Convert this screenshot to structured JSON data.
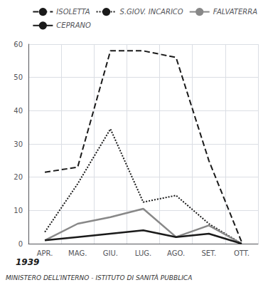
{
  "chart_data": {
    "type": "line",
    "categories": [
      "APR.",
      "MAG.",
      "GIU.",
      "LUG.",
      "AGO.",
      "SET.",
      "OTT."
    ],
    "series": [
      {
        "name": "ISOLETTA",
        "color": "#1a1a1a",
        "line_style": "dashed",
        "values": [
          21.5,
          23,
          58,
          58,
          56,
          25,
          0.5
        ]
      },
      {
        "name": "S.GIOV. INCARICO",
        "color": "#1a1a1a",
        "line_style": "dotted",
        "values": [
          3.5,
          18,
          34.5,
          12.5,
          14.5,
          6,
          0
        ]
      },
      {
        "name": "FALVATERRA",
        "color": "#888888",
        "line_style": "solid",
        "values": [
          1,
          6,
          8,
          10.5,
          2,
          5.5,
          0
        ]
      },
      {
        "name": "CEPRANO",
        "color": "#1a1a1a",
        "line_style": "solid",
        "values": [
          1,
          2,
          3,
          4,
          2,
          3,
          0
        ]
      }
    ],
    "ylim": [
      0,
      60
    ],
    "yticks": [
      0,
      10,
      20,
      30,
      40,
      50,
      60
    ],
    "grid": true,
    "legend": "upper right",
    "annotations": [
      "1939",
      "MINISTERO DELL’INTERNO - ISTITUTO DI SANITÀ PUBBLICA"
    ]
  }
}
